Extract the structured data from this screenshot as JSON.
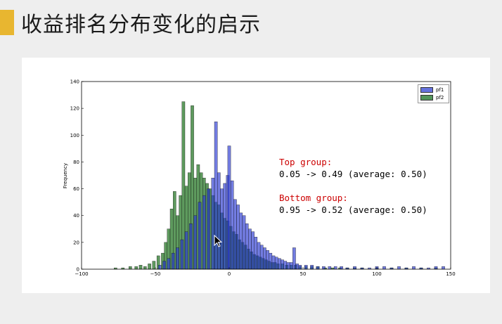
{
  "slide": {
    "title": "收益排名分布变化的启示",
    "accent_color": "#e8b630"
  },
  "annotation": {
    "top_label": "Top group:",
    "top_values": "0.05 -> 0.49 (average: 0.50)",
    "bottom_label": "Bottom group:",
    "bottom_values": "0.95 -> 0.52 (average: 0.50)"
  },
  "chart_data": {
    "type": "bar",
    "subtype": "overlaid histogram",
    "title": "",
    "xlabel": "",
    "ylabel": "Frequency",
    "xlim": [
      -100,
      150
    ],
    "ylim": [
      0,
      140
    ],
    "xticks": [
      "−100",
      "−50",
      "0",
      "50",
      "100",
      "150"
    ],
    "yticks": [
      "0",
      "20",
      "40",
      "60",
      "80",
      "100",
      "120",
      "140"
    ],
    "legend": "top-right",
    "grid": false,
    "series": [
      {
        "name": "pf1",
        "color": "#4a5bd6",
        "bins": [
          {
            "x": -47,
            "y": 3
          },
          {
            "x": -44,
            "y": 6
          },
          {
            "x": -41,
            "y": 8
          },
          {
            "x": -38,
            "y": 12
          },
          {
            "x": -35,
            "y": 16
          },
          {
            "x": -32,
            "y": 22
          },
          {
            "x": -29,
            "y": 28
          },
          {
            "x": -26,
            "y": 34
          },
          {
            "x": -23,
            "y": 40
          },
          {
            "x": -20,
            "y": 50
          },
          {
            "x": -17,
            "y": 55
          },
          {
            "x": -14,
            "y": 60
          },
          {
            "x": -11,
            "y": 68
          },
          {
            "x": -9,
            "y": 110
          },
          {
            "x": -7,
            "y": 72
          },
          {
            "x": -5,
            "y": 60
          },
          {
            "x": -3,
            "y": 64
          },
          {
            "x": -1,
            "y": 70
          },
          {
            "x": 0,
            "y": 92
          },
          {
            "x": 2,
            "y": 66
          },
          {
            "x": 4,
            "y": 52
          },
          {
            "x": 6,
            "y": 48
          },
          {
            "x": 8,
            "y": 42
          },
          {
            "x": 10,
            "y": 40
          },
          {
            "x": 12,
            "y": 34
          },
          {
            "x": 14,
            "y": 30
          },
          {
            "x": 16,
            "y": 28
          },
          {
            "x": 18,
            "y": 24
          },
          {
            "x": 20,
            "y": 20
          },
          {
            "x": 22,
            "y": 18
          },
          {
            "x": 24,
            "y": 16
          },
          {
            "x": 26,
            "y": 14
          },
          {
            "x": 28,
            "y": 12
          },
          {
            "x": 30,
            "y": 10
          },
          {
            "x": 32,
            "y": 9
          },
          {
            "x": 34,
            "y": 8
          },
          {
            "x": 36,
            "y": 7
          },
          {
            "x": 38,
            "y": 6
          },
          {
            "x": 40,
            "y": 5
          },
          {
            "x": 42,
            "y": 5
          },
          {
            "x": 44,
            "y": 16
          },
          {
            "x": 46,
            "y": 4
          },
          {
            "x": 48,
            "y": 3
          },
          {
            "x": 52,
            "y": 3
          },
          {
            "x": 56,
            "y": 3
          },
          {
            "x": 60,
            "y": 2
          },
          {
            "x": 64,
            "y": 2
          },
          {
            "x": 68,
            "y": 2
          },
          {
            "x": 72,
            "y": 2
          },
          {
            "x": 76,
            "y": 2
          },
          {
            "x": 80,
            "y": 1
          },
          {
            "x": 85,
            "y": 2
          },
          {
            "x": 90,
            "y": 1
          },
          {
            "x": 95,
            "y": 1
          },
          {
            "x": 100,
            "y": 2
          },
          {
            "x": 105,
            "y": 2
          },
          {
            "x": 110,
            "y": 1
          },
          {
            "x": 115,
            "y": 2
          },
          {
            "x": 120,
            "y": 1
          },
          {
            "x": 125,
            "y": 2
          },
          {
            "x": 130,
            "y": 1
          },
          {
            "x": 135,
            "y": 1
          },
          {
            "x": 140,
            "y": 2
          },
          {
            "x": 145,
            "y": 2
          }
        ]
      },
      {
        "name": "pf2",
        "color": "#3e8a3e",
        "bins": [
          {
            "x": -77,
            "y": 1
          },
          {
            "x": -72,
            "y": 1
          },
          {
            "x": -67,
            "y": 2
          },
          {
            "x": -63,
            "y": 2
          },
          {
            "x": -60,
            "y": 3
          },
          {
            "x": -57,
            "y": 2
          },
          {
            "x": -54,
            "y": 4
          },
          {
            "x": -51,
            "y": 6
          },
          {
            "x": -48,
            "y": 10
          },
          {
            "x": -45,
            "y": 12
          },
          {
            "x": -43,
            "y": 20
          },
          {
            "x": -41,
            "y": 30
          },
          {
            "x": -39,
            "y": 45
          },
          {
            "x": -37,
            "y": 58
          },
          {
            "x": -35,
            "y": 40
          },
          {
            "x": -33,
            "y": 55
          },
          {
            "x": -31,
            "y": 125
          },
          {
            "x": -29,
            "y": 62
          },
          {
            "x": -27,
            "y": 72
          },
          {
            "x": -25,
            "y": 122
          },
          {
            "x": -23,
            "y": 68
          },
          {
            "x": -21,
            "y": 78
          },
          {
            "x": -19,
            "y": 72
          },
          {
            "x": -17,
            "y": 68
          },
          {
            "x": -15,
            "y": 64
          },
          {
            "x": -13,
            "y": 60
          },
          {
            "x": -11,
            "y": 55
          },
          {
            "x": -9,
            "y": 50
          },
          {
            "x": -7,
            "y": 48
          },
          {
            "x": -5,
            "y": 42
          },
          {
            "x": -3,
            "y": 38
          },
          {
            "x": -1,
            "y": 36
          },
          {
            "x": 1,
            "y": 32
          },
          {
            "x": 3,
            "y": 28
          },
          {
            "x": 5,
            "y": 26
          },
          {
            "x": 7,
            "y": 22
          },
          {
            "x": 9,
            "y": 20
          },
          {
            "x": 11,
            "y": 18
          },
          {
            "x": 13,
            "y": 15
          },
          {
            "x": 15,
            "y": 13
          },
          {
            "x": 17,
            "y": 11
          },
          {
            "x": 19,
            "y": 10
          },
          {
            "x": 21,
            "y": 9
          },
          {
            "x": 23,
            "y": 8
          },
          {
            "x": 25,
            "y": 7
          },
          {
            "x": 27,
            "y": 6
          },
          {
            "x": 29,
            "y": 5
          },
          {
            "x": 31,
            "y": 5
          },
          {
            "x": 33,
            "y": 4
          },
          {
            "x": 36,
            "y": 4
          },
          {
            "x": 39,
            "y": 3
          },
          {
            "x": 42,
            "y": 3
          },
          {
            "x": 45,
            "y": 3
          },
          {
            "x": 48,
            "y": 2
          },
          {
            "x": 52,
            "y": 2
          },
          {
            "x": 56,
            "y": 2
          },
          {
            "x": 60,
            "y": 2
          },
          {
            "x": 65,
            "y": 1
          },
          {
            "x": 70,
            "y": 1
          },
          {
            "x": 75,
            "y": 1
          },
          {
            "x": 80,
            "y": 1
          },
          {
            "x": 85,
            "y": 1
          },
          {
            "x": 90,
            "y": 1
          },
          {
            "x": 100,
            "y": 1
          },
          {
            "x": 110,
            "y": 1
          },
          {
            "x": 120,
            "y": 1
          },
          {
            "x": 130,
            "y": 1
          },
          {
            "x": 140,
            "y": 1
          }
        ]
      }
    ]
  }
}
